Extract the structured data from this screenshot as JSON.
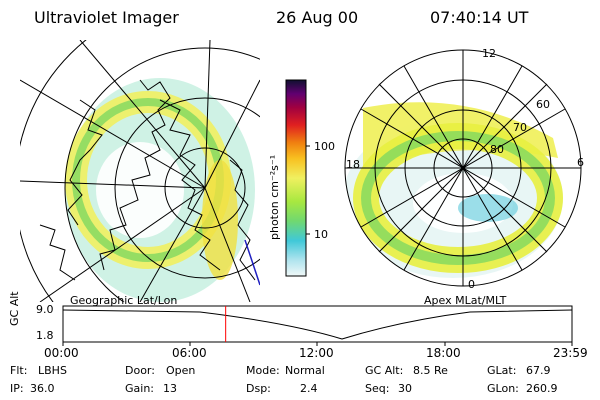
{
  "header": {
    "title": "Ultraviolet Imager",
    "date": "26 Aug 00",
    "time": "07:40:14 UT"
  },
  "left_panel": {
    "label": "Geographic Lat/Lon"
  },
  "right_panel": {
    "label": "Apex MLat/MLT",
    "lat_labels": [
      "60",
      "70",
      "80"
    ],
    "mlt_labels": {
      "top": "12",
      "left": "18",
      "right": "6",
      "bottom": "0"
    }
  },
  "colorbar": {
    "unit_label": "photon cm⁻²s⁻¹",
    "tick_labels": [
      "100",
      "10"
    ],
    "colors": [
      "#e8f4f8",
      "#b0e4ee",
      "#40c8d8",
      "#80e060",
      "#c8f040",
      "#f8f060",
      "#f8c020",
      "#f08010",
      "#e02020",
      "#a00030",
      "#600070",
      "#202060"
    ]
  },
  "altitude_strip": {
    "axis_label": "GC Alt",
    "y_ticks": [
      "9.0",
      "1.8"
    ],
    "x_ticks": [
      "00:00",
      "06:00",
      "12:00",
      "18:00",
      "23:59"
    ],
    "marker_time_hours": 7.67
  },
  "info": {
    "row1": [
      {
        "label": "Flt:",
        "value": "LBHS"
      },
      {
        "label": "Door:",
        "value": "Open"
      },
      {
        "label": "Mode:",
        "value": "Normal"
      },
      {
        "label": "GC Alt:",
        "value": "8.5 Re"
      },
      {
        "label": "GLat:",
        "value": "67.9"
      }
    ],
    "row2": [
      {
        "label": "IP:",
        "value": "36.0"
      },
      {
        "label": "Gain:",
        "value": "13"
      },
      {
        "label": "Dsp:",
        "value": "2.4"
      },
      {
        "label": "Seq:",
        "value": "30"
      },
      {
        "label": "GLon:",
        "value": "260.9"
      }
    ]
  },
  "colors": {
    "aurora_yellow": "#f0f060",
    "aurora_green": "#90e060",
    "aurora_cyan": "#60d0e0",
    "marker_red": "#ff0000"
  }
}
